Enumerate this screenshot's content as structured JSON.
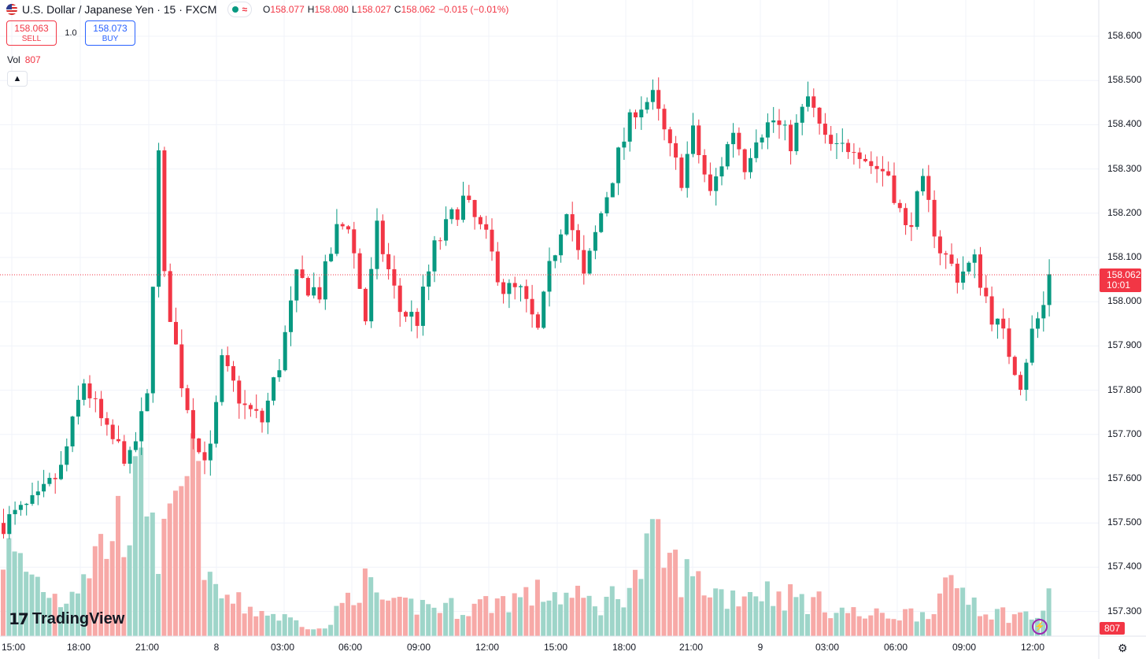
{
  "header": {
    "symbol": "U.S. Dollar / Japanese Yen · 15 · FXCM",
    "ohlc": {
      "o_label": "O",
      "o": "158.077",
      "h_label": "H",
      "h": "158.080",
      "l_label": "L",
      "l": "158.027",
      "c_label": "C",
      "c": "158.062",
      "change": "−0.015 (−0.01%)"
    }
  },
  "trade": {
    "sell_price": "158.063",
    "sell_label": "SELL",
    "qty": "1.0",
    "buy_price": "158.073",
    "buy_label": "BUY"
  },
  "volume": {
    "label": "Vol",
    "value": "807"
  },
  "price_axis": {
    "labels": [
      "158.600",
      "158.500",
      "158.400",
      "158.300",
      "158.200",
      "158.100",
      "158.000",
      "157.900",
      "157.800",
      "157.700",
      "157.600",
      "157.500",
      "157.400",
      "157.300"
    ],
    "current_price": "158.062",
    "countdown": "10:01",
    "volume_tag": "807"
  },
  "time_axis": [
    "15:00",
    "18:00",
    "21:00",
    "8",
    "03:00",
    "06:00",
    "09:00",
    "12:00",
    "15:00",
    "18:00",
    "21:00",
    "9",
    "03:00",
    "06:00",
    "09:00",
    "12:00"
  ],
  "branding": {
    "logo_text": "TradingView",
    "logo_mark": "17"
  },
  "colors": {
    "up": "#089981",
    "down": "#f23645",
    "vol_up": "#9ed5c9",
    "vol_down": "#f7a9a7",
    "grid": "#f0f3fa"
  },
  "icons": {
    "collapse": "chevron-up-icon",
    "settings": "gear-icon",
    "lightning": "lightning-icon"
  },
  "chart_data": {
    "type": "candlestick",
    "ylim": [
      157.25,
      158.65
    ],
    "price_ticks": [
      158.6,
      158.5,
      158.4,
      158.3,
      158.2,
      158.1,
      158.0,
      157.9,
      157.8,
      157.7,
      157.6,
      157.5,
      157.4,
      157.3
    ],
    "current_price": 158.062,
    "anchors": [
      [
        0,
        157.5
      ],
      [
        6,
        157.55
      ],
      [
        10,
        157.62
      ],
      [
        14,
        157.82
      ],
      [
        18,
        157.7
      ],
      [
        22,
        157.64
      ],
      [
        25,
        157.78
      ],
      [
        27,
        158.33
      ],
      [
        28,
        158.05
      ],
      [
        31,
        157.82
      ],
      [
        34,
        157.66
      ],
      [
        36,
        157.66
      ],
      [
        38,
        157.86
      ],
      [
        42,
        157.76
      ],
      [
        45,
        157.73
      ],
      [
        48,
        157.86
      ],
      [
        51,
        158.05
      ],
      [
        55,
        158.02
      ],
      [
        58,
        158.16
      ],
      [
        60,
        158.18
      ],
      [
        63,
        157.96
      ],
      [
        65,
        158.16
      ],
      [
        69,
        157.98
      ],
      [
        72,
        157.96
      ],
      [
        75,
        158.12
      ],
      [
        78,
        158.19
      ],
      [
        80,
        158.23
      ],
      [
        84,
        158.14
      ],
      [
        87,
        158.03
      ],
      [
        90,
        158.02
      ],
      [
        93,
        157.93
      ],
      [
        95,
        158.07
      ],
      [
        98,
        158.22
      ],
      [
        101,
        158.05
      ],
      [
        104,
        158.2
      ],
      [
        107,
        158.33
      ],
      [
        110,
        158.44
      ],
      [
        113,
        158.46
      ],
      [
        116,
        158.34
      ],
      [
        118,
        158.28
      ],
      [
        120,
        158.38
      ],
      [
        123,
        158.24
      ],
      [
        127,
        158.39
      ],
      [
        129,
        158.31
      ],
      [
        131,
        158.38
      ],
      [
        134,
        158.41
      ],
      [
        137,
        158.36
      ],
      [
        140,
        158.46
      ],
      [
        143,
        158.36
      ],
      [
        145,
        158.34
      ],
      [
        148,
        158.36
      ],
      [
        151,
        158.31
      ],
      [
        154,
        158.29
      ],
      [
        157,
        158.16
      ],
      [
        160,
        158.26
      ],
      [
        163,
        158.12
      ],
      [
        166,
        158.06
      ],
      [
        169,
        158.09
      ],
      [
        172,
        157.97
      ],
      [
        174,
        157.92
      ],
      [
        177,
        157.82
      ],
      [
        179,
        157.93
      ],
      [
        181,
        157.99
      ],
      [
        182,
        158.06
      ]
    ],
    "volumes": [
      [
        0,
        110
      ],
      [
        10,
        45
      ],
      [
        26,
        200
      ],
      [
        27,
        100
      ],
      [
        30,
        140
      ],
      [
        33,
        220
      ],
      [
        36,
        60
      ],
      [
        41,
        40
      ],
      [
        56,
        8
      ],
      [
        62,
        70
      ],
      [
        68,
        35
      ],
      [
        72,
        40
      ],
      [
        80,
        35
      ],
      [
        86,
        45
      ],
      [
        95,
        55
      ],
      [
        104,
        40
      ],
      [
        110,
        70
      ],
      [
        113,
        115
      ],
      [
        118,
        80
      ],
      [
        126,
        50
      ],
      [
        131,
        60
      ],
      [
        140,
        45
      ],
      [
        150,
        25
      ],
      [
        160,
        30
      ],
      [
        166,
        65
      ],
      [
        172,
        30
      ],
      [
        180,
        25
      ],
      [
        182,
        45
      ]
    ]
  }
}
